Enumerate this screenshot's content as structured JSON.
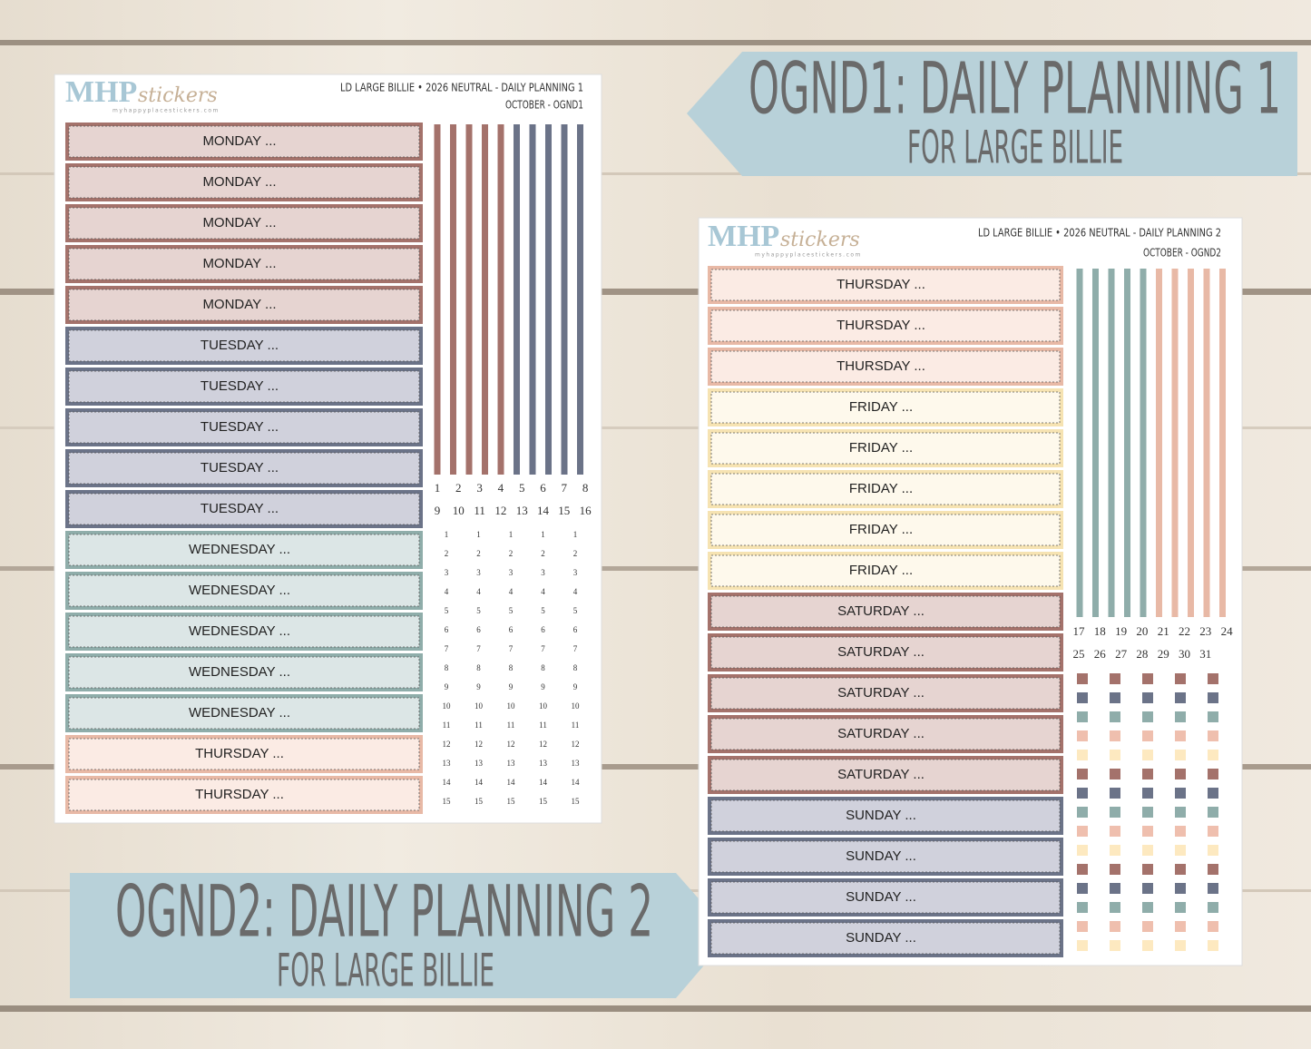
{
  "banners": [
    {
      "title": "OGND1: DAILY PLANNING 1",
      "subtitle": "FOR LARGE BILLIE"
    },
    {
      "title": "OGND2: DAILY PLANNING 2",
      "subtitle": "FOR LARGE BILLIE"
    }
  ],
  "sheets": [
    {
      "logo": {
        "brand": "MHP",
        "script": "stickers",
        "url": "myhappyplacestickers.com"
      },
      "header": [
        "LD LARGE BILLIE • 2026 NEUTRAL - DAILY PLANNING 1",
        "OCTOBER - OGND1"
      ],
      "labels": [
        "MONDAY ...",
        "MONDAY ...",
        "MONDAY ...",
        "MONDAY ...",
        "MONDAY ...",
        "TUESDAY ...",
        "TUESDAY ...",
        "TUESDAY ...",
        "TUESDAY ...",
        "TUESDAY ...",
        "WEDNESDAY ...",
        "WEDNESDAY ...",
        "WEDNESDAY ...",
        "WEDNESDAY ...",
        "WEDNESDAY ...",
        "THURSDAY ...",
        "THURSDAY ..."
      ],
      "date_numbers": [
        [
          1,
          2,
          3,
          4,
          5,
          6,
          7,
          8
        ],
        [
          9,
          10,
          11,
          12,
          13,
          14,
          15,
          16
        ]
      ],
      "small_numbers": [
        1,
        2,
        3,
        4,
        5,
        6,
        7,
        8,
        9,
        10,
        11,
        12,
        13,
        14,
        15
      ]
    },
    {
      "logo": {
        "brand": "MHP",
        "script": "stickers",
        "url": "myhappyplacestickers.com"
      },
      "header": [
        "LD LARGE BILLIE • 2026 NEUTRAL - DAILY PLANNING 2",
        "OCTOBER - OGND2"
      ],
      "labels": [
        "THURSDAY ...",
        "THURSDAY ...",
        "THURSDAY ...",
        "FRIDAY ...",
        "FRIDAY ...",
        "FRIDAY ...",
        "FRIDAY ...",
        "FRIDAY ...",
        "SATURDAY ...",
        "SATURDAY ...",
        "SATURDAY ...",
        "SATURDAY ...",
        "SATURDAY ...",
        "SUNDAY ...",
        "SUNDAY ...",
        "SUNDAY ...",
        "SUNDAY ..."
      ],
      "date_numbers": [
        [
          17,
          18,
          19,
          20,
          21,
          22,
          23,
          24
        ],
        [
          25,
          26,
          27,
          28,
          29,
          30,
          31
        ]
      ]
    }
  ]
}
